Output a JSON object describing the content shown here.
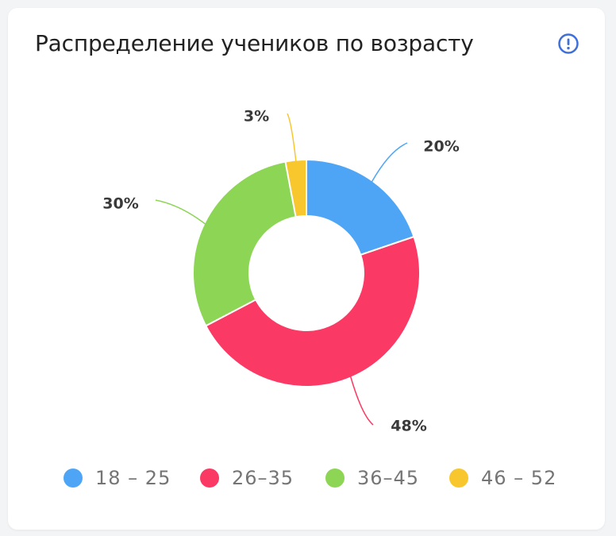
{
  "card": {
    "title": "Распределение учеников по возрасту",
    "info_icon": "exclamation-circle-icon"
  },
  "colors": {
    "accent": "#3f6fd8"
  },
  "chart_data": {
    "type": "pie",
    "donut": true,
    "title": "Распределение учеников по возрасту",
    "categories": [
      "18 – 25",
      "26–35",
      "36–45",
      "46 – 52"
    ],
    "values": [
      20,
      48,
      30,
      3
    ],
    "labels": [
      "20%",
      "48%",
      "30%",
      "3%"
    ],
    "colors": [
      "#4ea5f5",
      "#fa3964",
      "#8dd554",
      "#f8c72e"
    ],
    "legend_position": "bottom"
  }
}
